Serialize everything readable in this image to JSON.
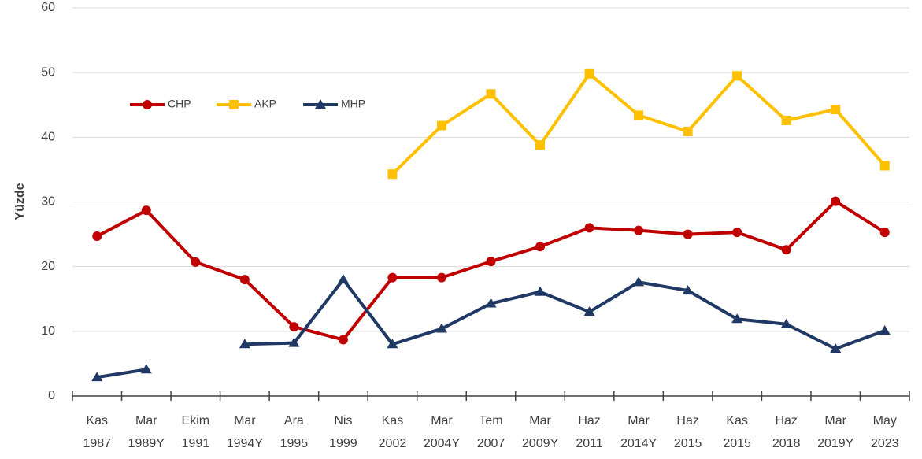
{
  "chart_data": {
    "type": "line",
    "ylabel": "Yüzde",
    "categories": [
      "Kas 1987",
      "Mar 1989Y",
      "Ekim 1991",
      "Mar 1994Y",
      "Ara 1995",
      "Nis 1999",
      "Kas 2002",
      "Mar 2004Y",
      "Tem 2007",
      "Mar 2009Y",
      "Haz 2011",
      "Mar 2014Y",
      "Haz 2015",
      "Kas 2015",
      "Haz 2018",
      "Mar 2019Y",
      "May 2023"
    ],
    "series": [
      {
        "name": "CHP",
        "color": "#c00000",
        "marker": "circle",
        "values": [
          24.7,
          28.7,
          20.7,
          18.0,
          10.7,
          8.7,
          18.3,
          18.3,
          20.8,
          23.1,
          26.0,
          25.6,
          25.0,
          25.3,
          22.6,
          30.1,
          25.3
        ]
      },
      {
        "name": "AKP",
        "color": "#ffc000",
        "marker": "square",
        "values": [
          null,
          null,
          null,
          null,
          null,
          null,
          34.3,
          41.8,
          46.7,
          38.8,
          49.8,
          43.4,
          40.9,
          49.5,
          42.6,
          44.3,
          35.6
        ]
      },
      {
        "name": "MHP",
        "color": "#1f3864",
        "marker": "triangle",
        "values": [
          2.9,
          4.1,
          null,
          8.0,
          8.2,
          18.0,
          8.0,
          10.4,
          14.3,
          16.1,
          13.0,
          17.6,
          16.3,
          11.9,
          11.1,
          7.3,
          10.1
        ]
      }
    ],
    "ylim": [
      0,
      60
    ],
    "yticks": [
      0,
      10,
      20,
      30,
      40,
      50,
      60
    ],
    "grid": true,
    "legend": "upper-left"
  }
}
